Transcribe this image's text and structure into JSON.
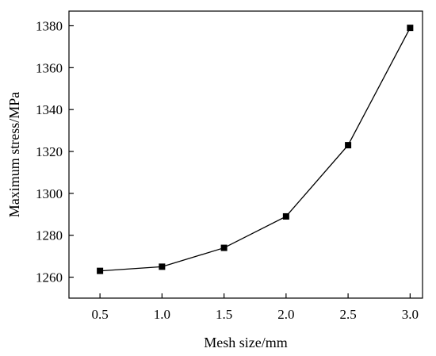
{
  "chart_data": {
    "type": "line",
    "xlabel": "Mesh size/mm",
    "ylabel": "Maximum stress/MPa",
    "xlim": [
      0.25,
      3.1
    ],
    "ylim": [
      1250,
      1387
    ],
    "xticks": [
      0.5,
      1.0,
      1.5,
      2.0,
      2.5,
      3.0
    ],
    "xtick_labels": [
      "0.5",
      "1.0",
      "1.5",
      "2.0",
      "2.5",
      "3.0"
    ],
    "yticks": [
      1260,
      1280,
      1300,
      1320,
      1340,
      1360,
      1380
    ],
    "ytick_labels": [
      "1260",
      "1280",
      "1300",
      "1320",
      "1340",
      "1360",
      "1380"
    ],
    "grid": false,
    "marker": "square",
    "colors": {
      "line": "#000000",
      "marker": "#000000",
      "axis": "#000000"
    },
    "series": [
      {
        "x": [
          0.5,
          1.0,
          1.5,
          2.0,
          2.5,
          3.0
        ],
        "y": [
          1263,
          1265,
          1274,
          1289,
          1323,
          1379
        ]
      }
    ]
  }
}
